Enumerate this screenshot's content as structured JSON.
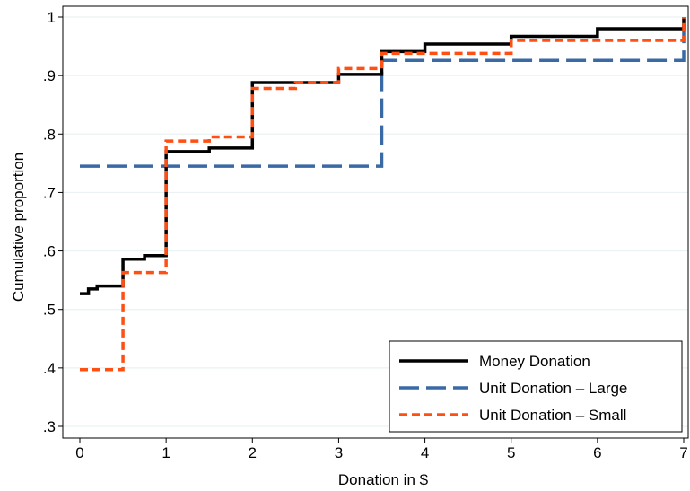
{
  "chart_data": {
    "type": "line",
    "step": true,
    "xlabel": "Donation in $",
    "ylabel": "Cumulative proportion",
    "xlim": [
      0,
      7
    ],
    "ylim": [
      0.3,
      1
    ],
    "xticks": [
      0,
      1,
      2,
      3,
      4,
      5,
      6,
      7
    ],
    "xtick_labels": [
      "0",
      "1",
      "2",
      "3",
      "4",
      "5",
      "6",
      "7"
    ],
    "yticks": [
      0.3,
      0.4,
      0.5,
      0.6,
      0.7,
      0.8,
      0.9,
      1.0
    ],
    "ytick_labels": [
      ".3",
      ".4",
      ".5",
      ".6",
      ".7",
      ".8",
      ".9",
      "1"
    ],
    "grid": "horizontal",
    "legend_position": "bottom-right",
    "series": [
      {
        "name": "Money Donation",
        "color": "#000000",
        "style": "solid",
        "x": [
          0,
          0.1,
          0.2,
          0.5,
          0.75,
          1,
          1.5,
          2,
          3,
          3.5,
          4,
          5,
          6,
          7
        ],
        "y": [
          0.527,
          0.535,
          0.54,
          0.586,
          0.592,
          0.77,
          0.776,
          0.888,
          0.902,
          0.941,
          0.954,
          0.967,
          0.98,
          1.0
        ]
      },
      {
        "name": "Unit Donation – Large",
        "color": "#3a6aa6",
        "style": "dashed",
        "x": [
          0,
          3.5,
          7
        ],
        "y": [
          0.745,
          0.926,
          1.0
        ]
      },
      {
        "name": "Unit Donation – Small",
        "color": "#ff4f12",
        "style": "dotted",
        "x": [
          0,
          0.5,
          1,
          1.5,
          2,
          2.5,
          3,
          3.5,
          5,
          7
        ],
        "y": [
          0.397,
          0.563,
          0.788,
          0.795,
          0.878,
          0.888,
          0.912,
          0.938,
          0.96,
          1.0
        ]
      }
    ]
  }
}
